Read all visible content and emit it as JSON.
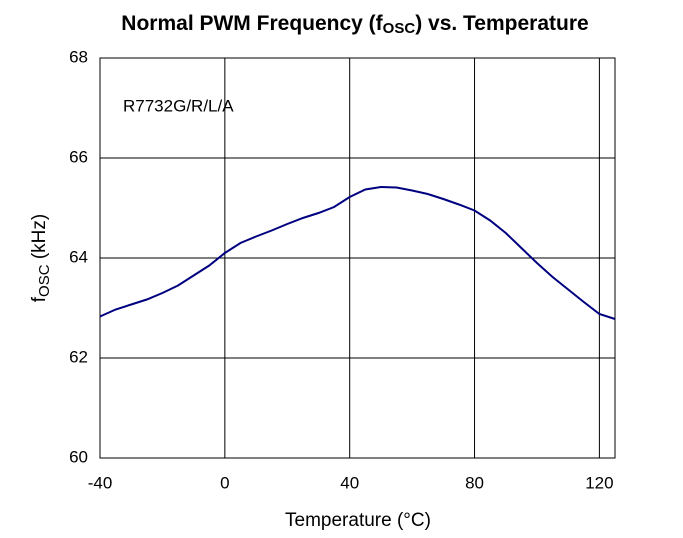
{
  "chart_data": {
    "type": "line",
    "title_parts": [
      "Normal PWM Frequency (f",
      "OSC",
      ") vs. Temperature"
    ],
    "ylabel_parts": [
      "f",
      "OSC",
      " (kHz)"
    ],
    "xlabel": "Temperature (°C)",
    "annotation": "R7732G/R/L/A",
    "x": [
      -40,
      -35,
      -30,
      -25,
      -20,
      -15,
      -10,
      -5,
      0,
      5,
      10,
      15,
      20,
      25,
      30,
      35,
      40,
      45,
      50,
      55,
      60,
      65,
      70,
      75,
      80,
      85,
      90,
      95,
      100,
      105,
      110,
      115,
      120,
      125
    ],
    "series": [
      {
        "name": "R7732G/R/L/A",
        "color": "#000080",
        "values": [
          62.83,
          62.97,
          63.07,
          63.17,
          63.3,
          63.45,
          63.65,
          63.85,
          64.1,
          64.3,
          64.43,
          64.55,
          64.68,
          64.8,
          64.9,
          65.02,
          65.22,
          65.37,
          65.42,
          65.41,
          65.35,
          65.28,
          65.18,
          65.07,
          64.95,
          64.75,
          64.5,
          64.2,
          63.9,
          63.62,
          63.37,
          63.12,
          62.88,
          62.78
        ]
      }
    ],
    "xlim": [
      -40,
      125
    ],
    "xticks": [
      -40,
      0,
      40,
      80,
      120
    ],
    "ylim": [
      60,
      68
    ],
    "yticks": [
      60,
      62,
      64,
      66,
      68
    ],
    "grid": true
  }
}
